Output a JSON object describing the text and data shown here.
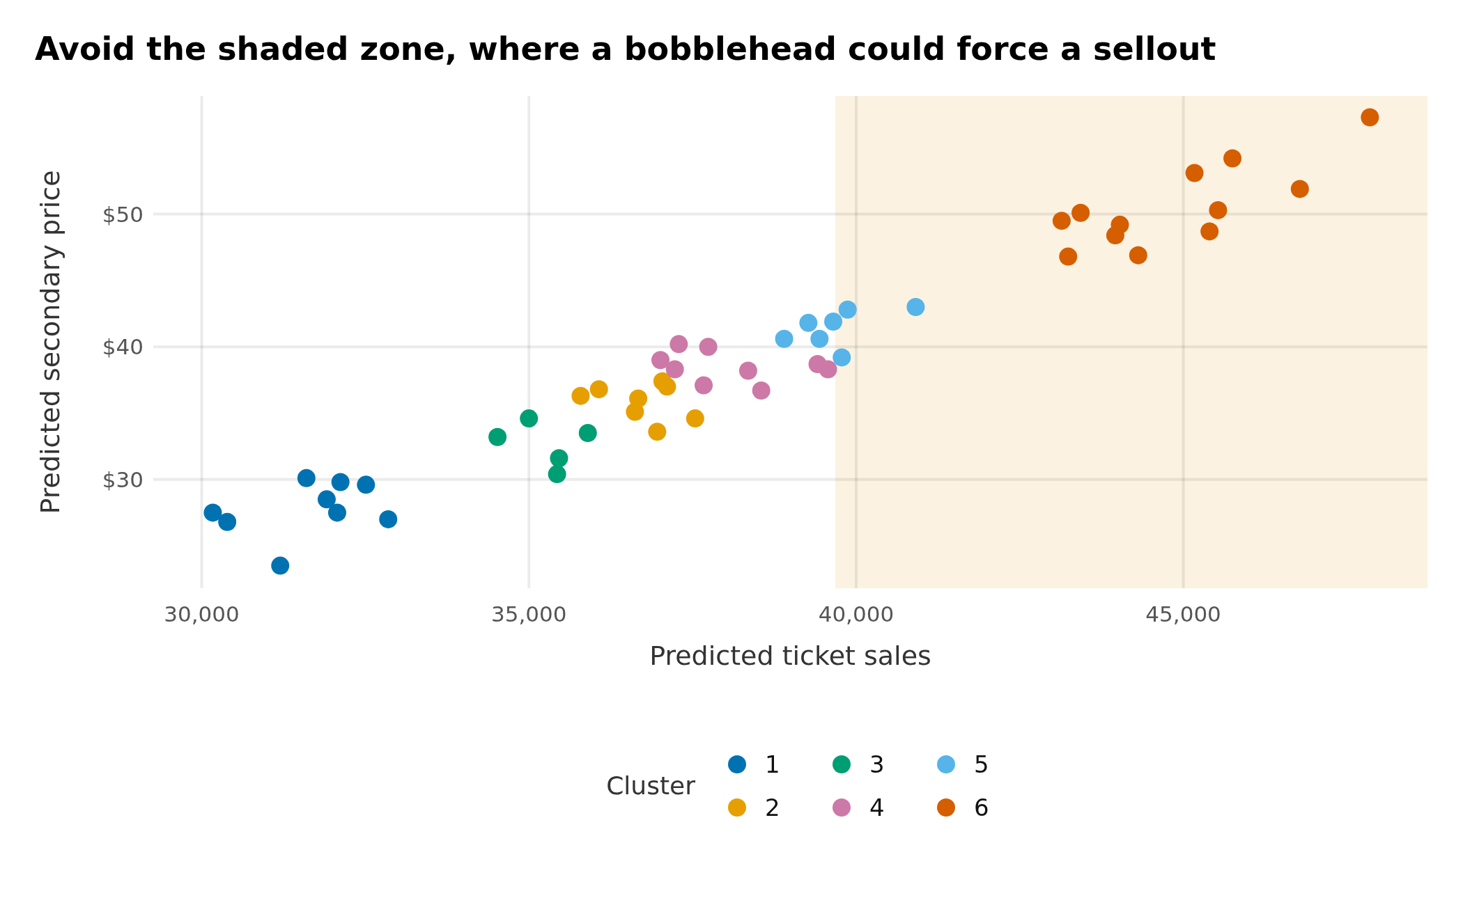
{
  "chart_data": {
    "type": "scatter",
    "title": "Avoid the shaded zone, where a bobblehead could force a sellout",
    "xlabel": "Predicted ticket sales",
    "ylabel": "Predicted secondary price",
    "legend_title": "Cluster",
    "legend": "bottom",
    "grid": true,
    "marker": "circle",
    "xlim": [
      29260,
      48730
    ],
    "ylim": [
      21.8,
      58.9
    ],
    "xticks": [
      {
        "value": 30000,
        "label": "30,000"
      },
      {
        "value": 35000,
        "label": "35,000"
      },
      {
        "value": 40000,
        "label": "40,000"
      },
      {
        "value": 45000,
        "label": "45,000"
      }
    ],
    "yticks": [
      {
        "value": 30,
        "label": "$30"
      },
      {
        "value": 40,
        "label": "$40"
      },
      {
        "value": 50,
        "label": "$50"
      }
    ],
    "bands": [
      {
        "axis": "x",
        "from": 39680,
        "to": 48730,
        "color": "#fbf2e1"
      }
    ],
    "series": [
      {
        "name": "1",
        "color": "#0072b2",
        "x": [
          30170,
          30390,
          31200,
          31600,
          31910,
          32070,
          32120,
          32510,
          32850
        ],
        "values": [
          27.5,
          26.8,
          23.5,
          30.1,
          28.5,
          27.5,
          29.8,
          29.6,
          27.0
        ]
      },
      {
        "name": "2",
        "color": "#e69f00",
        "x": [
          35790,
          36070,
          36620,
          36670,
          36960,
          37040,
          37110,
          37540
        ],
        "values": [
          36.3,
          36.8,
          35.1,
          36.1,
          33.6,
          37.4,
          37.0,
          34.6
        ]
      },
      {
        "name": "3",
        "color": "#009e73",
        "x": [
          34520,
          35000,
          35460,
          35430,
          35900
        ],
        "values": [
          33.2,
          34.6,
          31.6,
          30.4,
          33.5
        ]
      },
      {
        "name": "4",
        "color": "#cc79a7",
        "x": [
          37010,
          37230,
          37290,
          37670,
          37740,
          38350,
          38550,
          39410,
          39570
        ],
        "values": [
          39.0,
          38.3,
          40.2,
          37.1,
          40.0,
          38.2,
          36.7,
          38.7,
          38.3
        ]
      },
      {
        "name": "5",
        "color": "#56b4e9",
        "x": [
          38900,
          39270,
          39440,
          39650,
          39870,
          39780,
          40910
        ],
        "values": [
          40.6,
          41.8,
          40.6,
          41.9,
          42.8,
          39.2,
          43.0
        ]
      },
      {
        "name": "6",
        "color": "#d55e00",
        "x": [
          43140,
          43240,
          43430,
          43960,
          44030,
          44310,
          45170,
          45400,
          45530,
          45750,
          46780,
          47850
        ],
        "values": [
          49.5,
          46.8,
          50.1,
          48.4,
          49.2,
          46.9,
          53.1,
          48.7,
          50.3,
          54.2,
          51.9,
          57.3
        ]
      }
    ]
  }
}
